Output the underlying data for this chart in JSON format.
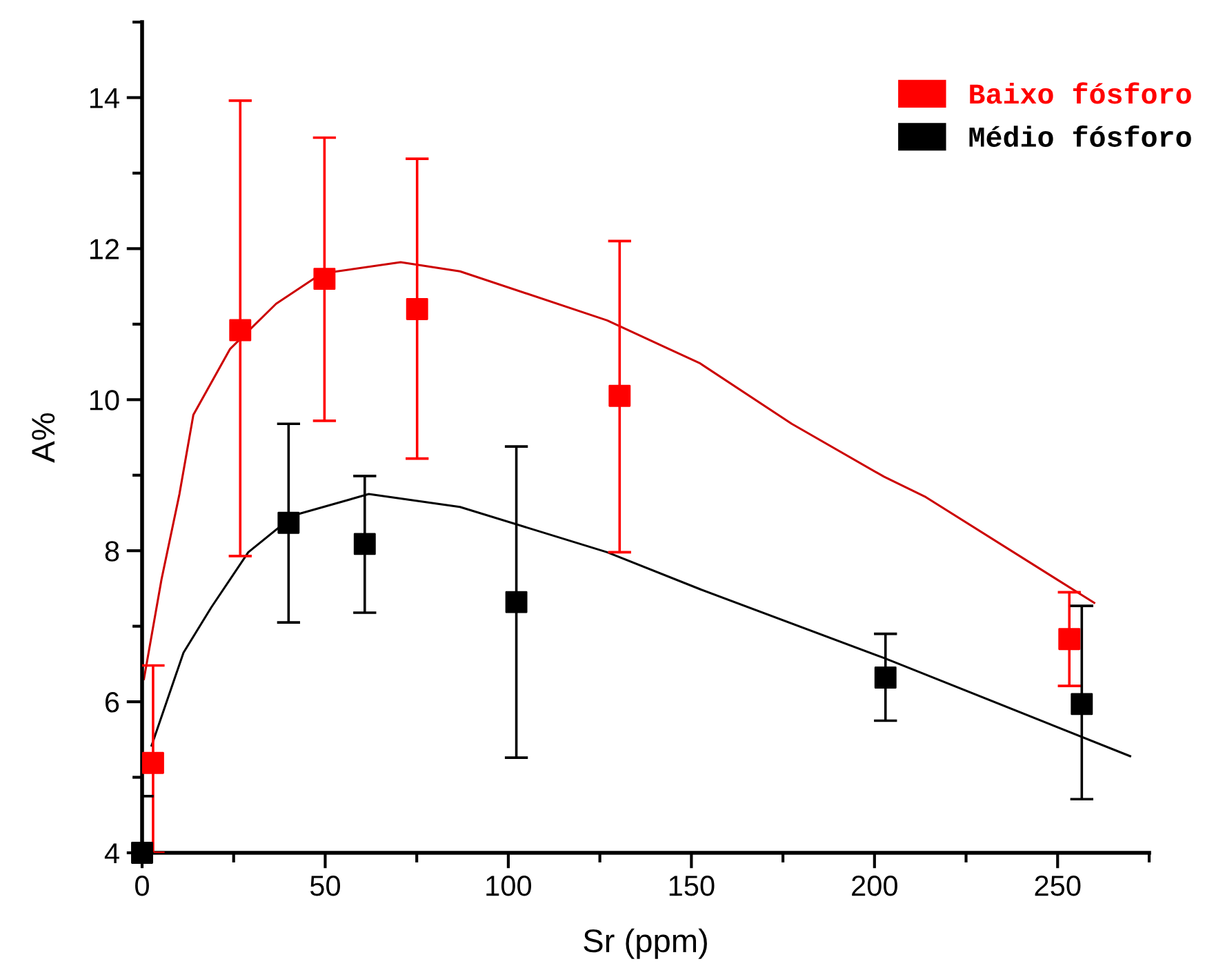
{
  "chart_data": {
    "type": "scatter",
    "xlabel": "Sr (ppm)",
    "ylabel": "A%",
    "xlim": [
      0,
      275
    ],
    "ylim": [
      4,
      15
    ],
    "xticks": [
      0,
      50,
      100,
      150,
      200,
      250
    ],
    "yticks": [
      4,
      6,
      8,
      10,
      12,
      14
    ],
    "grid": false,
    "legend": "top right",
    "series": [
      {
        "name": "Baixo fósforo",
        "color": "#ff0000",
        "marker": "square",
        "x": [
          3.0,
          26.8,
          49.8,
          75.1,
          130.4,
          253.2
        ],
        "values": [
          5.19,
          10.92,
          11.6,
          11.2,
          10.05,
          6.83
        ],
        "errors": [
          [
            4.0,
            6.48
          ],
          [
            7.93,
            13.96
          ],
          [
            9.72,
            13.47
          ],
          [
            9.22,
            13.19
          ],
          [
            7.98,
            12.1
          ],
          [
            6.21,
            7.45
          ]
        ]
      },
      {
        "name": "Médio fósforo",
        "color": "#000000",
        "marker": "square",
        "x": [
          0,
          40,
          60.8,
          102.2,
          203,
          256.6
        ],
        "values": [
          4.0,
          8.37,
          8.09,
          7.32,
          6.32,
          5.97
        ],
        "errors": [
          [
            4.0,
            4.75
          ],
          [
            7.05,
            9.68
          ],
          [
            7.18,
            8.99
          ],
          [
            5.26,
            9.38
          ],
          [
            5.75,
            6.9
          ],
          [
            4.71,
            7.27
          ]
        ]
      },
      {
        "type": "line",
        "marker": "none",
        "color": "#cc0000",
        "x": [
          0.5,
          5.3,
          10.2,
          14,
          24,
          36.6,
          49,
          70.6,
          86.8,
          127,
          152.4,
          177.4,
          202.6,
          214,
          260
        ],
        "values": [
          6.3,
          7.62,
          8.75,
          9.8,
          10.67,
          11.27,
          11.67,
          11.82,
          11.7,
          11.05,
          10.48,
          9.68,
          8.98,
          8.71,
          7.31
        ]
      },
      {
        "type": "line",
        "marker": "none",
        "color": "#000000",
        "x": [
          2.6,
          11.3,
          18.9,
          29,
          41.5,
          61.9,
          86.8,
          127,
          152.4,
          202.6,
          269.8
        ],
        "values": [
          5.42,
          6.65,
          7.25,
          7.98,
          8.47,
          8.75,
          8.58,
          7.98,
          7.49,
          6.58,
          5.28
        ]
      }
    ]
  }
}
